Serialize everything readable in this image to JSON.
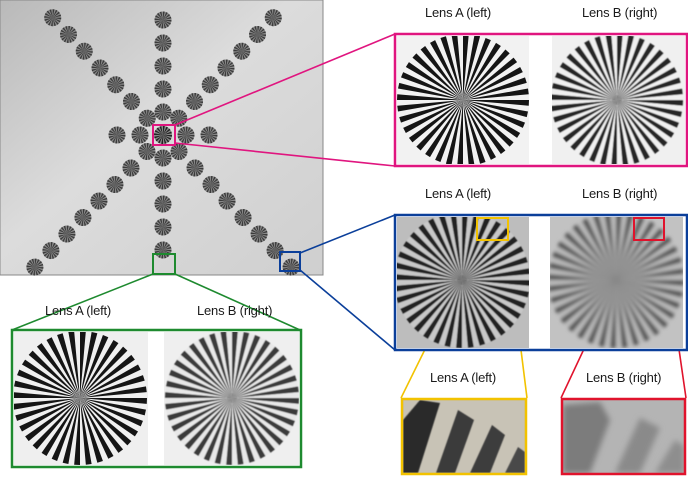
{
  "figure": {
    "colors": {
      "magenta": "#e0157f",
      "blue": "#0b3f9a",
      "green": "#1e8a2f",
      "yellow": "#f2c200",
      "red": "#e0132c"
    },
    "labels": {
      "magenta_left": "Lens A (left)",
      "magenta_right": "Lens B (right)",
      "blue_left": "Lens A (left)",
      "blue_right": "Lens B (right)",
      "green_left": "Lens A (left)",
      "green_right": "Lens B (right)",
      "yellow_left": "Lens A (left)",
      "red_right": "Lens B (right)"
    }
  }
}
